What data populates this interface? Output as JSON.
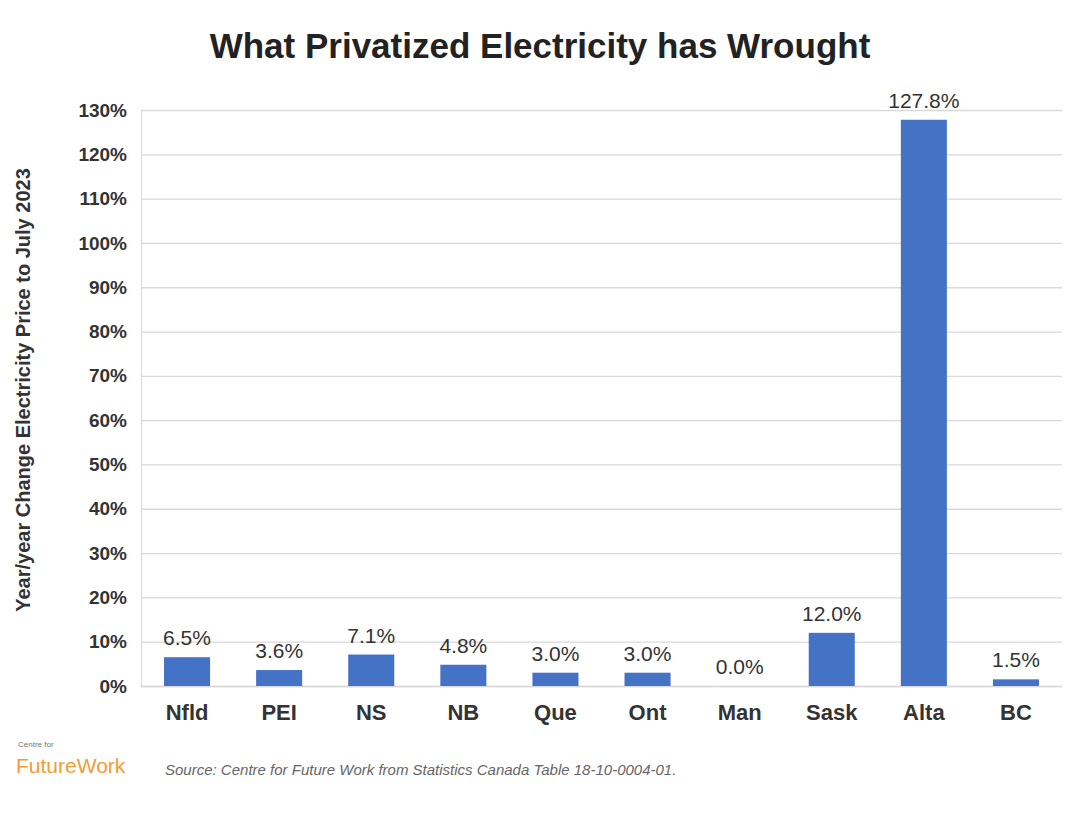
{
  "chart_data": {
    "type": "bar",
    "title": "What Privatized Electricity has Wrought",
    "y_label": "Year/year Change Electricity Price to July 2023",
    "categories": [
      "Nfld",
      "PEI",
      "NS",
      "NB",
      "Que",
      "Ont",
      "Man",
      "Sask",
      "Alta",
      "BC"
    ],
    "values": [
      6.5,
      3.6,
      7.1,
      4.8,
      3.0,
      3.0,
      0.0,
      12.0,
      127.8,
      1.5
    ],
    "value_labels": [
      "6.5%",
      "3.6%",
      "7.1%",
      "4.8%",
      "3.0%",
      "3.0%",
      "0.0%",
      "12.0%",
      "127.8%",
      "1.5%"
    ],
    "color": "#4472c4",
    "ylim": [
      0,
      130
    ],
    "yticks": [
      {
        "value": 0,
        "label": "0%"
      },
      {
        "value": 10,
        "label": "10%"
      },
      {
        "value": 20,
        "label": "20%"
      },
      {
        "value": 30,
        "label": "30%"
      },
      {
        "value": 40,
        "label": "40%"
      },
      {
        "value": 50,
        "label": "50%"
      },
      {
        "value": 60,
        "label": "60%"
      },
      {
        "value": 70,
        "label": "70%"
      },
      {
        "value": 80,
        "label": "80%"
      },
      {
        "value": 90,
        "label": "90%"
      },
      {
        "value": 100,
        "label": "100%"
      },
      {
        "value": 110,
        "label": "110%"
      },
      {
        "value": 120,
        "label": "120%"
      },
      {
        "value": 130,
        "label": "130%"
      }
    ],
    "grid": true,
    "data_labels": true,
    "annotations": [
      "Centre for",
      "FutureWork",
      "Source: Centre for Future Work from Statistics Canada Table 18-10-0004-01."
    ]
  }
}
